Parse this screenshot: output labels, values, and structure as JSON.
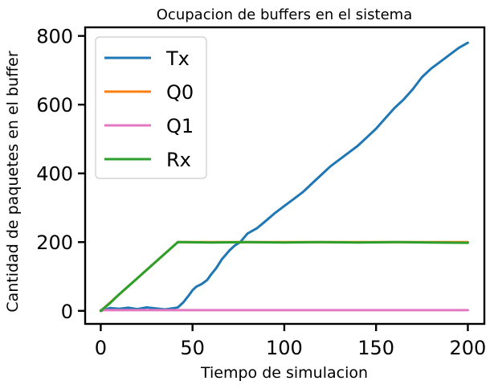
{
  "chart_data": {
    "type": "line",
    "title": "Ocupacion de buffers en el sistema",
    "xlabel": "Tiempo de simulacion",
    "ylabel": "Cantidad de paquetes en el buffer",
    "xlim": [
      -8.5,
      209
    ],
    "ylim": [
      -38,
      825
    ],
    "xticks": [
      0,
      50,
      100,
      150,
      200
    ],
    "yticks": [
      0,
      200,
      400,
      600,
      800
    ],
    "grid": false,
    "legend": "top-left",
    "series": [
      {
        "name": "Tx",
        "color": "#1f77b4",
        "x": [
          0,
          5,
          10,
          15,
          20,
          25,
          30,
          35,
          40,
          42,
          45,
          48,
          50,
          52,
          55,
          58,
          60,
          63,
          66,
          70,
          73,
          76,
          80,
          85,
          90,
          95,
          100,
          105,
          110,
          115,
          120,
          125,
          130,
          135,
          140,
          145,
          150,
          155,
          160,
          165,
          170,
          175,
          180,
          185,
          190,
          195,
          200
        ],
        "y": [
          0,
          8,
          6,
          9,
          5,
          10,
          7,
          4,
          8,
          10,
          25,
          45,
          60,
          70,
          78,
          90,
          105,
          125,
          150,
          175,
          190,
          200,
          225,
          240,
          262,
          285,
          305,
          325,
          345,
          370,
          395,
          420,
          440,
          460,
          480,
          505,
          530,
          560,
          590,
          615,
          645,
          680,
          705,
          725,
          745,
          765,
          780
        ]
      },
      {
        "name": "Q0",
        "color": "#ff7f0e",
        "x": [
          0,
          42,
          45,
          200
        ],
        "y": [
          0,
          200,
          200,
          200
        ]
      },
      {
        "name": "Q1",
        "color": "#e377c2",
        "x": [
          0,
          200
        ],
        "y": [
          2,
          2
        ]
      },
      {
        "name": "Rx",
        "color": "#2ca02c",
        "x": [
          0,
          5,
          10,
          20,
          30,
          42,
          45,
          60,
          80,
          100,
          120,
          140,
          160,
          180,
          200
        ],
        "y": [
          0,
          22,
          48,
          95,
          143,
          200,
          200,
          199,
          200,
          199,
          200,
          199,
          200,
          199,
          198
        ]
      }
    ]
  }
}
